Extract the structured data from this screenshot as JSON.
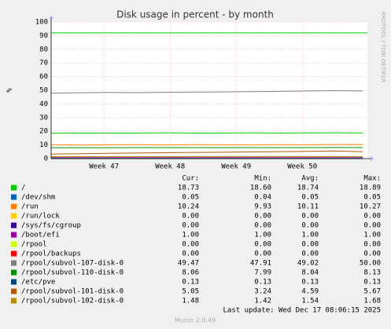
{
  "chart_data": {
    "type": "line",
    "title": "Disk usage in percent - by month",
    "y_label": "%",
    "side_text": "RRDTOOL / TOBI OETIKER",
    "x": [
      0,
      3,
      6,
      9,
      12,
      15,
      18,
      21,
      24,
      27,
      30,
      33
    ],
    "xlim": [
      0,
      33.5
    ],
    "xticks": [
      {
        "value": 5.6,
        "label": "Week 47"
      },
      {
        "value": 12.6,
        "label": "Week 48"
      },
      {
        "value": 19.6,
        "label": "Week 49"
      },
      {
        "value": 26.6,
        "label": "Week 50"
      }
    ],
    "ylim": [
      0,
      100
    ],
    "yticks": [
      0,
      10,
      20,
      30,
      40,
      50,
      60,
      70,
      80,
      90,
      100
    ],
    "grid": true,
    "reference_lines": [
      {
        "value": 92,
        "color": "#00cc00"
      }
    ],
    "stat_headers": [
      "Cur:",
      "Min:",
      "Avg:",
      "Max:"
    ],
    "series": [
      {
        "name": "/",
        "color": "#00cc00",
        "values": [
          18.6,
          18.7,
          18.7,
          18.7,
          18.8,
          18.7,
          18.7,
          18.8,
          18.7,
          18.8,
          18.9,
          18.73
        ],
        "stats": [
          "18.73",
          "18.60",
          "18.74",
          "18.89"
        ]
      },
      {
        "name": "/dev/shm",
        "color": "#0066b3",
        "values": [
          0.05,
          0.05,
          0.05,
          0.05,
          0.05,
          0.05,
          0.05,
          0.05,
          0.05,
          0.05,
          0.05,
          0.05
        ],
        "stats": [
          "0.05",
          "0.04",
          "0.05",
          "0.05"
        ]
      },
      {
        "name": "/run",
        "color": "#ff8000",
        "values": [
          10.2,
          9.9,
          10.1,
          10.2,
          10.0,
          10.2,
          10.1,
          10.0,
          10.2,
          10.1,
          10.3,
          10.24
        ],
        "stats": [
          "10.24",
          "9.93",
          "10.11",
          "10.27"
        ]
      },
      {
        "name": "/run/lock",
        "color": "#ffcc00",
        "values": [
          0,
          0,
          0,
          0,
          0,
          0,
          0,
          0,
          0,
          0,
          0,
          0
        ],
        "stats": [
          "0.00",
          "0.00",
          "0.00",
          "0.00"
        ]
      },
      {
        "name": "/sys/fs/cgroup",
        "color": "#330099",
        "values": [
          0,
          0,
          0,
          0,
          0,
          0,
          0,
          0,
          0,
          0,
          0,
          0
        ],
        "stats": [
          "0.00",
          "0.00",
          "0.00",
          "0.00"
        ]
      },
      {
        "name": "/boot/efi",
        "color": "#990099",
        "values": [
          1,
          1,
          1,
          1,
          1,
          1,
          1,
          1,
          1,
          1,
          1,
          1
        ],
        "stats": [
          "1.00",
          "1.00",
          "1.00",
          "1.00"
        ]
      },
      {
        "name": "/rpool",
        "color": "#ccff00",
        "values": [
          0,
          0,
          0,
          0,
          0,
          0,
          0,
          0,
          0,
          0,
          0,
          0
        ],
        "stats": [
          "0.00",
          "0.00",
          "0.00",
          "0.00"
        ]
      },
      {
        "name": "/rpool/backups",
        "color": "#ff0000",
        "values": [
          0,
          0,
          0,
          0,
          0,
          0,
          0,
          0,
          0,
          0,
          0,
          0
        ],
        "stats": [
          "0.00",
          "0.00",
          "0.00",
          "0.00"
        ]
      },
      {
        "name": "/rpool/subvol-107-disk-0",
        "color": "#808080",
        "values": [
          47.9,
          48.2,
          48.4,
          48.3,
          48.5,
          48.7,
          48.8,
          49.0,
          49.2,
          49.5,
          49.7,
          49.47
        ],
        "stats": [
          "49.47",
          "47.91",
          "49.02",
          "50.00"
        ]
      },
      {
        "name": "/rpool/subvol-110-disk-0",
        "color": "#008f00",
        "values": [
          8.0,
          8.0,
          8.0,
          8.05,
          8.05,
          8.05,
          8.05,
          8.05,
          8.05,
          8.05,
          8.1,
          8.06
        ],
        "stats": [
          "8.06",
          "7.99",
          "8.04",
          "8.13"
        ]
      },
      {
        "name": "/etc/pve",
        "color": "#00487d",
        "values": [
          0.13,
          0.13,
          0.13,
          0.13,
          0.13,
          0.13,
          0.13,
          0.13,
          0.13,
          0.13,
          0.13,
          0.13
        ],
        "stats": [
          "0.13",
          "0.13",
          "0.13",
          "0.13"
        ]
      },
      {
        "name": "/rpool/subvol-101-disk-0",
        "color": "#b35a00",
        "values": [
          3.3,
          3.6,
          3.9,
          4.1,
          4.3,
          4.5,
          4.7,
          4.9,
          5.1,
          5.3,
          5.6,
          5.05
        ],
        "stats": [
          "5.05",
          "3.24",
          "4.59",
          "5.67"
        ]
      },
      {
        "name": "/rpool/subvol-102-disk-0",
        "color": "#b38f00",
        "values": [
          1.45,
          1.5,
          1.5,
          1.52,
          1.53,
          1.55,
          1.55,
          1.56,
          1.58,
          1.6,
          1.6,
          1.48
        ],
        "stats": [
          "1.48",
          "1.42",
          "1.54",
          "1.68"
        ]
      }
    ],
    "last_update": "Last update: Wed Dec 17 08:06:15 2025",
    "footer": "Munin 2.0.49"
  }
}
